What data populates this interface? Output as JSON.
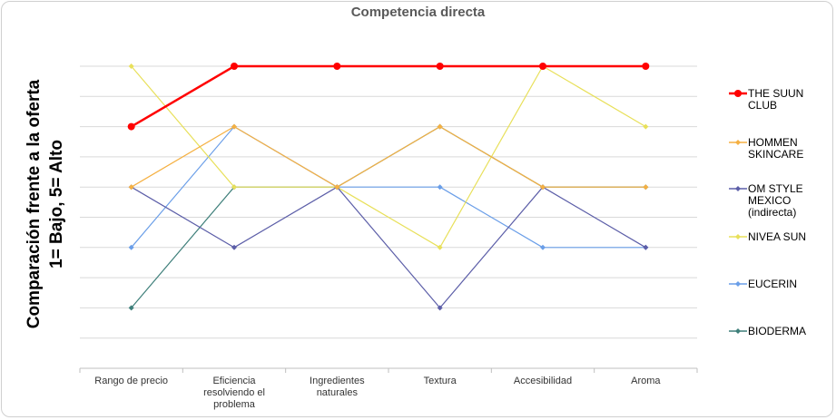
{
  "chart_data": {
    "type": "line",
    "title": "Competencia directa",
    "ylabel": [
      "Comparación frente a la oferta",
      "1= Bajo, 5= Alto"
    ],
    "xlabel": "",
    "categories": [
      [
        "Rango de precio"
      ],
      [
        "Eficiencia",
        "resolviendo el",
        "problema"
      ],
      [
        "Ingredientes",
        "naturales"
      ],
      [
        "Textura"
      ],
      [
        "Accesibilidad"
      ],
      [
        "Aroma"
      ]
    ],
    "ylim": [
      0,
      5
    ],
    "grid": true,
    "legend_position": "right",
    "series": [
      {
        "name": [
          "THE SUUN",
          "CLUB"
        ],
        "color": "#ff0000",
        "values": [
          4,
          5,
          5,
          5,
          5,
          5
        ]
      },
      {
        "name": [
          "HOMMEN",
          "SKINCARE"
        ],
        "color": "#f5b042",
        "values": [
          3,
          4,
          3,
          4,
          3,
          3
        ]
      },
      {
        "name": [
          "OM STYLE",
          "MEXICO",
          "(indirecta)"
        ],
        "color": "#5c5ea8",
        "values": [
          3,
          2,
          3,
          1,
          3,
          2
        ]
      },
      {
        "name": [
          "NIVEA SUN"
        ],
        "color": "#e8e05a",
        "values": [
          5,
          3,
          3,
          2,
          5,
          4
        ]
      },
      {
        "name": [
          "EUCERIN"
        ],
        "color": "#6a9ee8",
        "values": [
          2,
          4,
          3,
          3,
          2,
          2
        ]
      },
      {
        "name": [
          "BIODERMA"
        ],
        "color": "#3e7f7a",
        "values": [
          1,
          3,
          3,
          4,
          3,
          3
        ]
      }
    ]
  }
}
